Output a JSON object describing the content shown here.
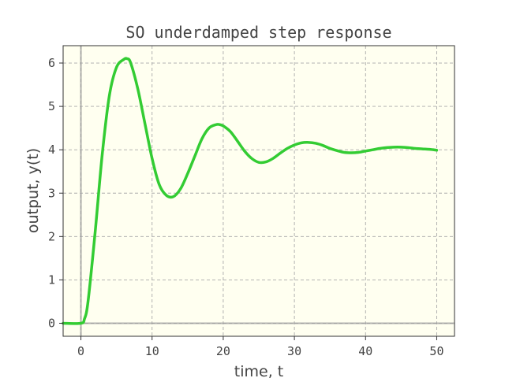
{
  "chart_data": {
    "type": "line",
    "title": "SO underdamped step response",
    "xlabel": "time, t",
    "ylabel": "output, y(t)",
    "xlim": [
      -2.5,
      52.5
    ],
    "ylim": [
      -0.3,
      6.4
    ],
    "xticks": [
      0,
      10,
      20,
      30,
      40,
      50
    ],
    "yticks": [
      0,
      1,
      2,
      3,
      4,
      5,
      6
    ],
    "grid": true,
    "background_color": "#fffff0",
    "line_color": "#33cc33",
    "zero_line_color": "#9a9a9a",
    "series": [
      {
        "x": [
          -2.5,
          0,
          0.5,
          1,
          2,
          3,
          4,
          5,
          6,
          6.5,
          7,
          8,
          9,
          10,
          11,
          12,
          13,
          14,
          15,
          16,
          17,
          18,
          19,
          19.5,
          20,
          21,
          22,
          23,
          24,
          25,
          26,
          27,
          28,
          29,
          30,
          31,
          32,
          33,
          34,
          35,
          36,
          37,
          38,
          39,
          40,
          41,
          42,
          43,
          44,
          45,
          46,
          47,
          48,
          49,
          50
        ],
        "y": [
          0,
          0,
          0.1,
          0.5,
          2.1,
          3.9,
          5.25,
          5.9,
          6.08,
          6.1,
          6.0,
          5.4,
          4.6,
          3.8,
          3.2,
          2.95,
          2.92,
          3.1,
          3.45,
          3.85,
          4.25,
          4.5,
          4.58,
          4.58,
          4.55,
          4.42,
          4.2,
          3.97,
          3.8,
          3.71,
          3.72,
          3.8,
          3.92,
          4.03,
          4.11,
          4.16,
          4.17,
          4.15,
          4.1,
          4.03,
          3.98,
          3.94,
          3.93,
          3.94,
          3.97,
          4.0,
          4.03,
          4.05,
          4.06,
          4.06,
          4.05,
          4.03,
          4.02,
          4.01,
          3.99
        ]
      }
    ]
  }
}
